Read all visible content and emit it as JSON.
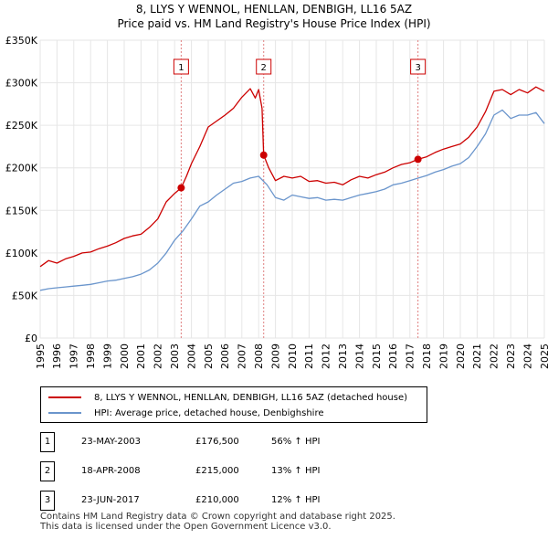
{
  "header": {
    "title_line1": "8, LLYS Y WENNOL, HENLLAN, DENBIGH, LL16 5AZ",
    "title_line2": "Price paid vs. HM Land Registry's House Price Index (HPI)"
  },
  "colors": {
    "property": "#cc0000",
    "hpi": "#6a95cc",
    "marker_line": "#e08080",
    "grid": "#e6e6e6"
  },
  "legend": {
    "property_label": "8, LLYS Y WENNOL, HENLLAN, DENBIGH, LL16 5AZ (detached house)",
    "hpi_label": "HPI: Average price, detached house, Denbighshire"
  },
  "transactions": [
    {
      "num": "1",
      "date": "23-MAY-2003",
      "price": "£176,500",
      "hpi": "56% ↑ HPI"
    },
    {
      "num": "2",
      "date": "18-APR-2008",
      "price": "£215,000",
      "hpi": "13% ↑ HPI"
    },
    {
      "num": "3",
      "date": "23-JUN-2017",
      "price": "£210,000",
      "hpi": "12% ↑ HPI"
    }
  ],
  "footer": {
    "line1": "Contains HM Land Registry data © Crown copyright and database right 2025.",
    "line2": "This data is licensed under the Open Government Licence v3.0."
  },
  "chart_data": {
    "type": "line",
    "title": "8, LLYS Y WENNOL, HENLLAN, DENBIGH, LL16 5AZ — Price paid vs. HM Land Registry's House Price Index (HPI)",
    "xlim": [
      1995,
      2025
    ],
    "ylim": [
      0,
      350000
    ],
    "y_ticks": [
      0,
      50000,
      100000,
      150000,
      200000,
      250000,
      300000,
      350000
    ],
    "y_tick_labels": [
      "£0",
      "£50K",
      "£100K",
      "£150K",
      "£200K",
      "£250K",
      "£300K",
      "£350K"
    ],
    "x_tick_labels": [
      "1995",
      "1996",
      "1997",
      "1998",
      "1999",
      "2000",
      "2001",
      "2002",
      "2003",
      "2004",
      "2005",
      "2006",
      "2007",
      "2008",
      "2009",
      "2010",
      "2011",
      "2012",
      "2013",
      "2014",
      "2015",
      "2016",
      "2017",
      "2018",
      "2019",
      "2020",
      "2021",
      "2022",
      "2023",
      "2024",
      "2025"
    ],
    "sales": [
      {
        "label": "1",
        "x": 2003.39,
        "y": 176500
      },
      {
        "label": "2",
        "x": 2008.3,
        "y": 215000
      },
      {
        "label": "3",
        "x": 2017.48,
        "y": 210000
      }
    ],
    "series": [
      {
        "name": "8, LLYS Y WENNOL, HENLLAN, DENBIGH, LL16 5AZ (detached house)",
        "x": [
          1995,
          1995.5,
          1996,
          1996.5,
          1997,
          1997.5,
          1998,
          1998.5,
          1999,
          1999.5,
          2000,
          2000.5,
          2001,
          2001.5,
          2002,
          2002.5,
          2003,
          2003.39,
          2003.7,
          2004,
          2004.5,
          2005,
          2005.5,
          2006,
          2006.5,
          2007,
          2007.5,
          2007.8,
          2008,
          2008.2,
          2008.3,
          2008.6,
          2009,
          2009.5,
          2010,
          2010.5,
          2011,
          2011.5,
          2012,
          2012.5,
          2013,
          2013.5,
          2014,
          2014.5,
          2015,
          2015.5,
          2016,
          2016.5,
          2017,
          2017.48,
          2018,
          2018.5,
          2019,
          2019.5,
          2020,
          2020.5,
          2021,
          2021.5,
          2022,
          2022.5,
          2023,
          2023.5,
          2024,
          2024.5,
          2025
        ],
        "values": [
          84000,
          91000,
          88000,
          93000,
          96000,
          100000,
          101000,
          105000,
          108000,
          112000,
          117000,
          120000,
          122000,
          130000,
          140000,
          160000,
          170000,
          176500,
          190000,
          205000,
          225000,
          248000,
          255000,
          262000,
          270000,
          283000,
          293000,
          282000,
          292000,
          270000,
          215000,
          200000,
          185000,
          190000,
          188000,
          190000,
          184000,
          185000,
          182000,
          183000,
          180000,
          186000,
          190000,
          188000,
          192000,
          195000,
          200000,
          204000,
          206000,
          210000,
          213000,
          218000,
          222000,
          225000,
          228000,
          236000,
          248000,
          266000,
          290000,
          292000,
          286000,
          292000,
          288000,
          295000,
          290000
        ]
      },
      {
        "name": "HPI: Average price, detached house, Denbighshire",
        "x": [
          1995,
          1995.5,
          1996,
          1996.5,
          1997,
          1997.5,
          1998,
          1998.5,
          1999,
          1999.5,
          2000,
          2000.5,
          2001,
          2001.5,
          2002,
          2002.5,
          2003,
          2003.5,
          2004,
          2004.5,
          2005,
          2005.5,
          2006,
          2006.5,
          2007,
          2007.5,
          2008,
          2008.5,
          2009,
          2009.5,
          2010,
          2010.5,
          2011,
          2011.5,
          2012,
          2012.5,
          2013,
          2013.5,
          2014,
          2014.5,
          2015,
          2015.5,
          2016,
          2016.5,
          2017,
          2017.5,
          2018,
          2018.5,
          2019,
          2019.5,
          2020,
          2020.5,
          2021,
          2021.5,
          2022,
          2022.5,
          2023,
          2023.5,
          2024,
          2024.5,
          2025
        ],
        "values": [
          56000,
          58000,
          59000,
          60000,
          61000,
          62000,
          63000,
          65000,
          67000,
          68000,
          70000,
          72000,
          75000,
          80000,
          88000,
          100000,
          115000,
          126000,
          140000,
          155000,
          160000,
          168000,
          175000,
          182000,
          184000,
          188000,
          190000,
          180000,
          165000,
          162000,
          168000,
          166000,
          164000,
          165000,
          162000,
          163000,
          162000,
          165000,
          168000,
          170000,
          172000,
          175000,
          180000,
          182000,
          185000,
          188000,
          191000,
          195000,
          198000,
          202000,
          205000,
          212000,
          225000,
          240000,
          262000,
          268000,
          258000,
          262000,
          262000,
          265000,
          252000
        ]
      }
    ]
  }
}
